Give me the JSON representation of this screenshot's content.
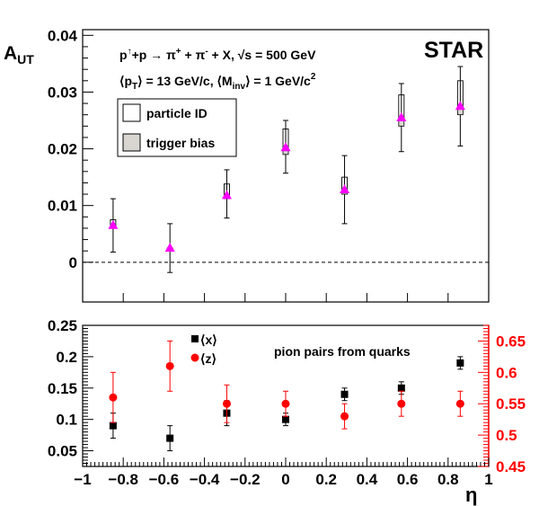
{
  "chart_data": [
    {
      "type": "scatter",
      "ylabel_main": "A",
      "ylabel_sub": "UT",
      "brand": "STAR",
      "reaction": {
        "p_up": "p",
        "up_sup": "↑",
        "rest": "+p → π",
        "pi_plus_sup": "+",
        "plus": " + π",
        "pi_minus_sup": "-",
        "tail": " + X, √s = 500 GeV"
      },
      "kinematics": {
        "pt_prefix": "⟨p",
        "pt_sub": "T",
        "pt_mid": "⟩ = 13 GeV/c, ⟨M",
        "minv_sub": "inv",
        "minv_mid": "⟩ = 1 GeV/c",
        "exp": "2"
      },
      "legend": [
        "particle ID",
        "trigger bias"
      ],
      "ylim": [
        -0.007,
        0.041
      ],
      "yticks": [
        "0",
        "0.01",
        "0.02",
        "0.03",
        "0.04"
      ],
      "series": [
        {
          "x": [
            -0.85,
            -0.57,
            -0.29,
            0.0,
            0.29,
            0.57,
            0.86
          ],
          "y": [
            0.0065,
            0.0025,
            0.0118,
            0.0202,
            0.0128,
            0.0255,
            0.0275
          ],
          "err_low": [
            0.0047,
            0.0043,
            0.004,
            0.0045,
            0.006,
            0.006,
            0.007
          ],
          "err_high": [
            0.0047,
            0.0043,
            0.0045,
            0.0048,
            0.006,
            0.006,
            0.007
          ],
          "sys_pid": [
            [
              0.0065,
              0.0075
            ],
            [
              0.0025,
              0.0025
            ],
            [
              0.0118,
              0.0138
            ],
            [
              0.0202,
              0.0235
            ],
            [
              0.0128,
              0.015
            ],
            [
              0.0255,
              0.0295
            ],
            [
              0.0275,
              0.032
            ]
          ],
          "sys_trig": [
            [
              0.006,
              0.0065
            ],
            [
              0.0022,
              0.0025
            ],
            [
              0.0112,
              0.0118
            ],
            [
              0.019,
              0.0202
            ],
            [
              0.012,
              0.0128
            ],
            [
              0.024,
              0.0255
            ],
            [
              0.026,
              0.0275
            ]
          ],
          "color": "#ff00ff"
        }
      ]
    },
    {
      "type": "scatter",
      "xlabel": "η",
      "annotation": "pion pairs from quarks",
      "xlim": [
        -1,
        1
      ],
      "xticks": [
        "−1",
        "−0.8",
        "−0.6",
        "−0.4",
        "−0.2",
        "0",
        "0.2",
        "0.4",
        "0.6",
        "0.8",
        "1"
      ],
      "ylim_left": [
        0.025,
        0.25
      ],
      "yticks_left": [
        "0.05",
        "0.1",
        "0.15",
        "0.2",
        "0.25"
      ],
      "ylim_right": [
        0.45,
        0.675
      ],
      "yticks_right": [
        "0.45",
        "0.5",
        "0.55",
        "0.6",
        "0.65"
      ],
      "series": [
        {
          "name": "⟨x⟩",
          "axis": "left",
          "x": [
            -0.85,
            -0.57,
            -0.29,
            0.0,
            0.29,
            0.57,
            0.86
          ],
          "y": [
            0.09,
            0.07,
            0.11,
            0.1,
            0.14,
            0.15,
            0.19
          ],
          "err": [
            0.02,
            0.02,
            0.02,
            0.01,
            0.01,
            0.01,
            0.01
          ],
          "marker": "square",
          "color": "#000000"
        },
        {
          "name": "⟨z⟩",
          "axis": "right",
          "x": [
            -0.85,
            -0.57,
            -0.29,
            0.0,
            0.29,
            0.57,
            0.86
          ],
          "y": [
            0.56,
            0.61,
            0.55,
            0.55,
            0.53,
            0.55,
            0.55
          ],
          "err": [
            0.04,
            0.04,
            0.03,
            0.02,
            0.02,
            0.02,
            0.02
          ],
          "marker": "circle",
          "color": "#ff0000"
        }
      ]
    }
  ]
}
